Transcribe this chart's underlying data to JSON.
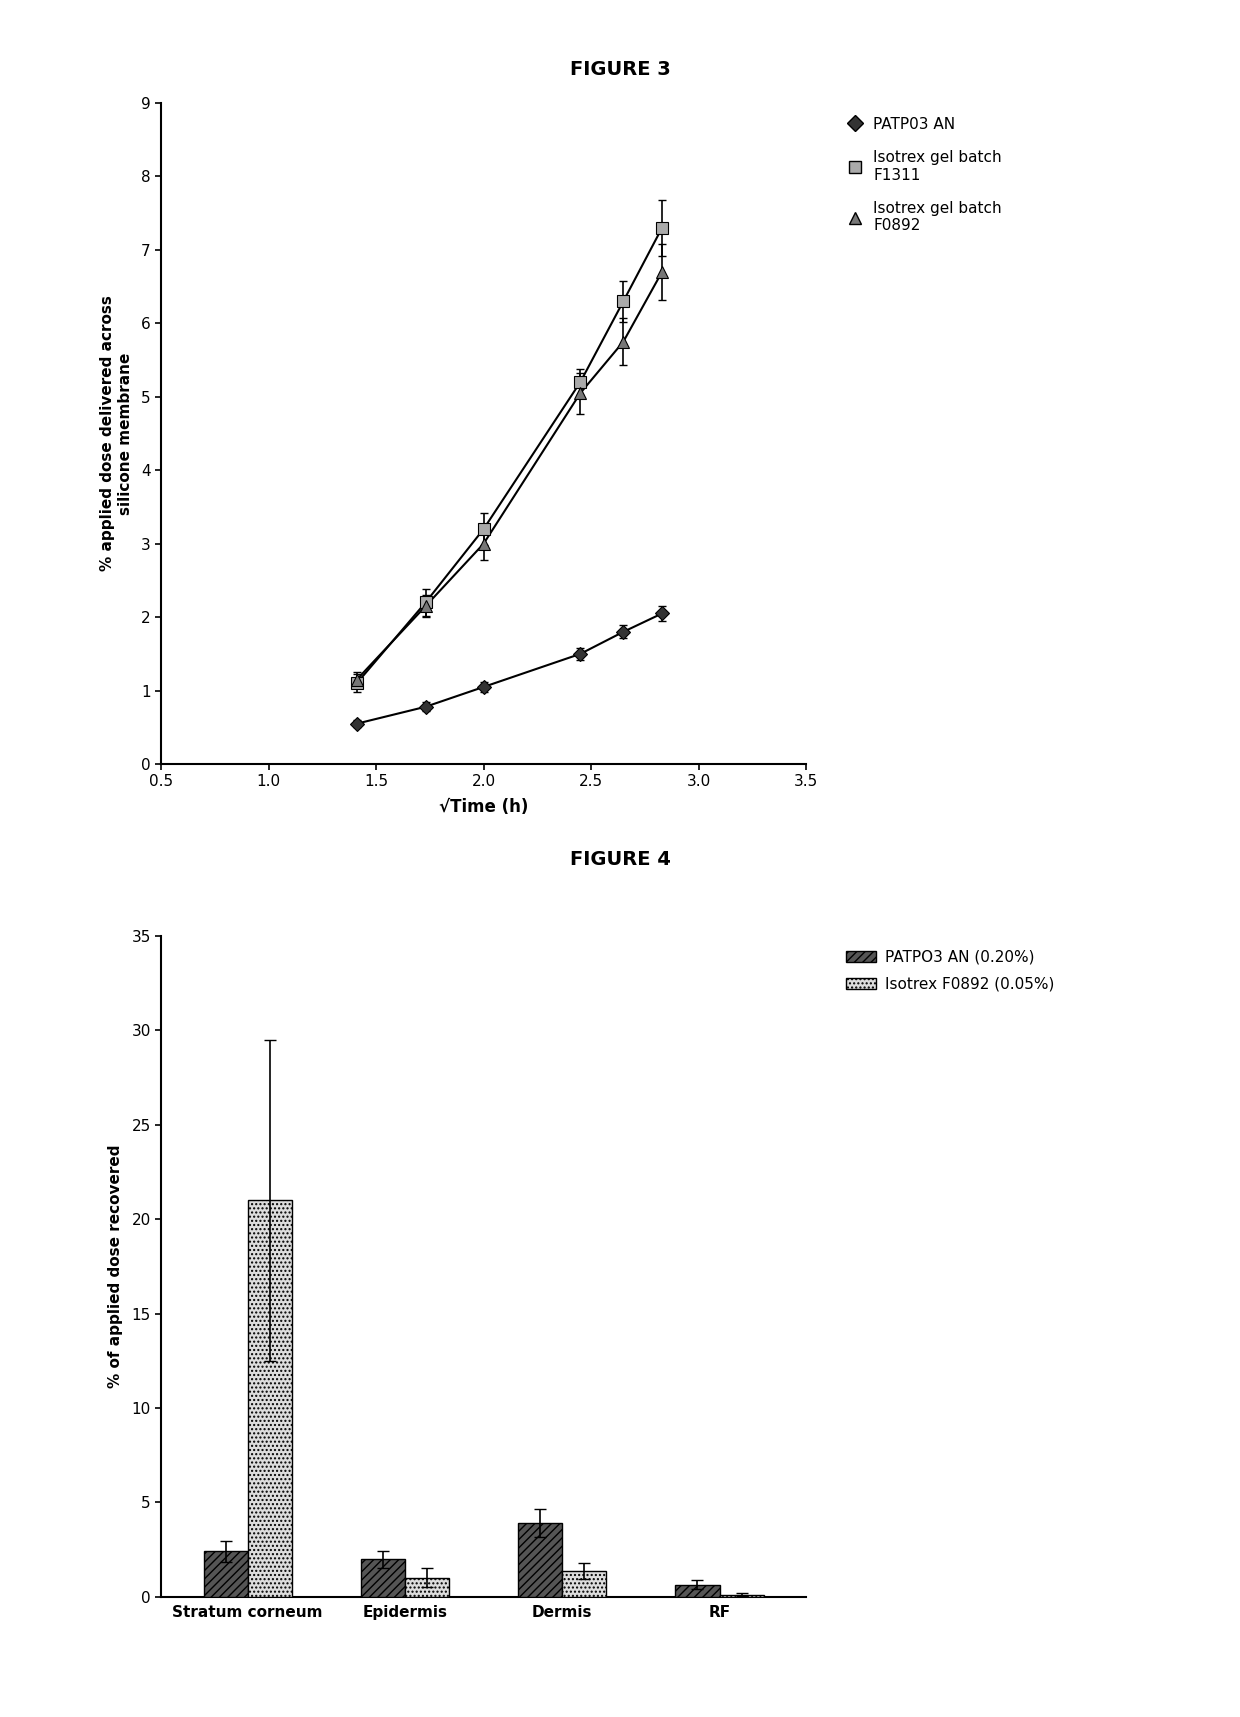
{
  "fig3_title": "FIGURE 3",
  "fig4_title": "FIGURE 4",
  "fig3_xlabel": "√Time (h)",
  "fig3_ylabel": "% applied dose delivered across\nsilicone membrane",
  "fig3_xlim": [
    0.5,
    3.5
  ],
  "fig3_ylim": [
    0,
    9
  ],
  "fig3_xticks": [
    0.5,
    1.0,
    1.5,
    2.0,
    2.5,
    3.0,
    3.5
  ],
  "fig3_yticks": [
    0,
    1,
    2,
    3,
    4,
    5,
    6,
    7,
    8,
    9
  ],
  "series1_label": "PATP03 AN",
  "series1_x": [
    1.41,
    1.73,
    2.0,
    2.45,
    2.65,
    2.83
  ],
  "series1_y": [
    0.55,
    0.78,
    1.05,
    1.5,
    1.8,
    2.05
  ],
  "series1_yerr": [
    0.05,
    0.06,
    0.07,
    0.08,
    0.09,
    0.1
  ],
  "series2_label": "Isotrex gel batch\nF1311",
  "series2_x": [
    1.41,
    1.73,
    2.0,
    2.45,
    2.65,
    2.83
  ],
  "series2_y": [
    1.1,
    2.2,
    3.2,
    5.2,
    6.3,
    7.3
  ],
  "series2_yerr": [
    0.12,
    0.18,
    0.22,
    0.18,
    0.28,
    0.38
  ],
  "series3_label": "Isotrex gel batch\nF0892",
  "series3_x": [
    1.41,
    1.73,
    2.0,
    2.45,
    2.65,
    2.83
  ],
  "series3_y": [
    1.15,
    2.15,
    3.0,
    5.05,
    5.75,
    6.7
  ],
  "series3_yerr": [
    0.1,
    0.15,
    0.22,
    0.28,
    0.32,
    0.38
  ],
  "fig4_ylabel": "% of applied dose recovered",
  "fig4_ylim": [
    0,
    35
  ],
  "fig4_yticks": [
    0,
    5,
    10,
    15,
    20,
    25,
    30,
    35
  ],
  "fig4_categories": [
    "Stratum corneum",
    "Epidermis",
    "Dermis",
    "RF"
  ],
  "bar1_label": "PATPO3 AN (0.20%)",
  "bar1_values": [
    2.4,
    2.0,
    3.9,
    0.65
  ],
  "bar1_yerr": [
    0.55,
    0.45,
    0.75,
    0.22
  ],
  "bar2_label": "Isotrex F0892 (0.05%)",
  "bar2_values": [
    21.0,
    1.0,
    1.35,
    0.12
  ],
  "bar2_yerr": [
    8.5,
    0.5,
    0.42,
    0.08
  ],
  "bg_color": "#ffffff"
}
